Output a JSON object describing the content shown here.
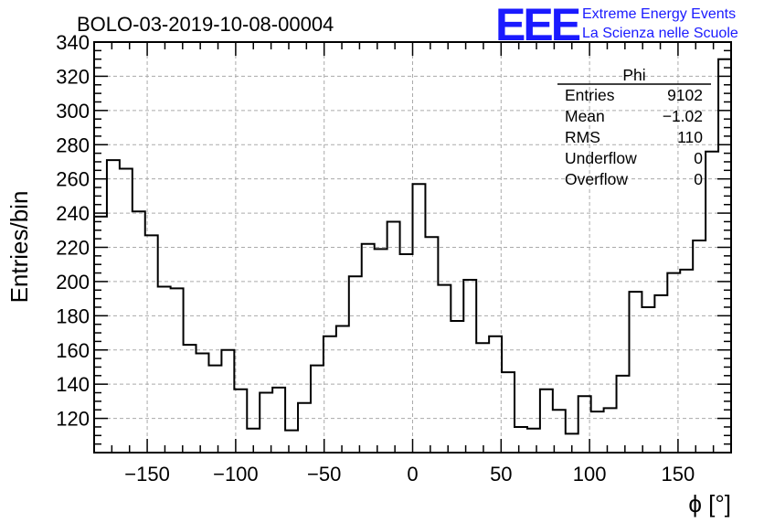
{
  "title": "BOLO-03-2019-10-08-00004",
  "logo": {
    "text": "EEE",
    "line1": "Extreme Energy Events",
    "line2": "La Scienza nelle Scuole",
    "color": "#1a1aff"
  },
  "stats": {
    "name": "Phi",
    "rows": [
      {
        "label": "Entries",
        "value": "9102"
      },
      {
        "label": "Mean",
        "value": "−1.02"
      },
      {
        "label": "RMS",
        "value": "110"
      },
      {
        "label": "Underflow",
        "value": "0"
      },
      {
        "label": "Overflow",
        "value": "0"
      }
    ]
  },
  "chart_data": {
    "type": "histogram",
    "title": "BOLO-03-2019-10-08-00004",
    "xlabel": "ϕ [°]",
    "ylabel": "Entries/bin",
    "xlim": [
      -180,
      180
    ],
    "ylim": [
      100,
      340
    ],
    "xticks": [
      -150,
      -100,
      -50,
      0,
      50,
      100,
      150
    ],
    "xtick_labels": [
      "−150",
      "−100",
      "−50",
      "0",
      "50",
      "100",
      "150"
    ],
    "yticks": [
      120,
      140,
      160,
      180,
      200,
      220,
      240,
      260,
      280,
      300,
      320,
      340
    ],
    "grid": true,
    "bin_edges_start": -180,
    "bin_width": 7.2,
    "values": [
      238,
      271,
      266,
      241,
      227,
      197,
      196,
      163,
      158,
      151,
      160,
      137,
      114,
      135,
      138,
      113,
      129,
      151,
      168,
      174,
      203,
      222,
      219,
      235,
      216,
      257,
      226,
      198,
      177,
      201,
      164,
      168,
      147,
      115,
      114,
      137,
      125,
      111,
      133,
      124,
      126,
      145,
      194,
      185,
      192,
      205,
      207,
      224,
      276,
      330
    ]
  }
}
